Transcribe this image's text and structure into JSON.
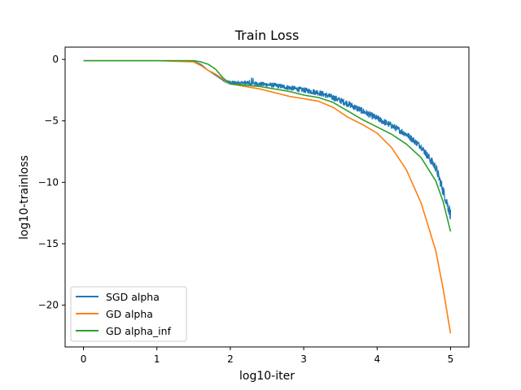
{
  "chart_data": {
    "type": "line",
    "title": "Train Loss",
    "xlabel": "log10-iter",
    "ylabel": "log10-trainloss",
    "xlim": [
      -0.25,
      5.25
    ],
    "ylim": [
      -23.4,
      1.0
    ],
    "xticks": [
      0,
      1,
      2,
      3,
      4,
      5
    ],
    "yticks": [
      0,
      -5,
      -10,
      -15,
      -20
    ],
    "xtick_labels": [
      "0",
      "1",
      "2",
      "3",
      "4",
      "5"
    ],
    "ytick_labels": [
      "0",
      "−5",
      "−10",
      "−15",
      "−20"
    ],
    "grid": false,
    "legend_position": "lower-left",
    "series": [
      {
        "name": "SGD alpha",
        "color": "#1f77b4",
        "noisy": true,
        "x": [
          0,
          0.5,
          1.0,
          1.5,
          1.6,
          1.7,
          1.8,
          1.9,
          2.0,
          2.2,
          2.4,
          2.6,
          2.8,
          3.0,
          3.2,
          3.4,
          3.6,
          3.8,
          4.0,
          4.2,
          4.4,
          4.6,
          4.8,
          5.0
        ],
        "y": [
          -0.1,
          -0.1,
          -0.1,
          -0.15,
          -0.4,
          -0.9,
          -1.3,
          -1.7,
          -1.9,
          -1.9,
          -2.0,
          -2.1,
          -2.3,
          -2.5,
          -2.7,
          -3.1,
          -3.6,
          -4.2,
          -4.8,
          -5.4,
          -6.1,
          -7.1,
          -8.8,
          -12.6
        ]
      },
      {
        "name": "GD alpha",
        "color": "#ff7f0e",
        "noisy": false,
        "x": [
          0,
          0.5,
          1.0,
          1.5,
          1.6,
          1.7,
          1.8,
          1.9,
          2.0,
          2.2,
          2.4,
          2.6,
          2.8,
          3.0,
          3.2,
          3.4,
          3.6,
          3.8,
          4.0,
          4.2,
          4.4,
          4.6,
          4.8,
          4.9,
          5.0
        ],
        "y": [
          -0.1,
          -0.1,
          -0.1,
          -0.2,
          -0.5,
          -0.9,
          -1.2,
          -1.6,
          -2.0,
          -2.2,
          -2.4,
          -2.7,
          -3.0,
          -3.2,
          -3.4,
          -3.9,
          -4.7,
          -5.3,
          -6.0,
          -7.2,
          -9.0,
          -11.7,
          -15.6,
          -18.7,
          -22.3
        ]
      },
      {
        "name": "GD alpha_inf",
        "color": "#2ca02c",
        "noisy": false,
        "x": [
          0,
          0.5,
          1.0,
          1.5,
          1.6,
          1.7,
          1.8,
          1.9,
          2.0,
          2.2,
          2.4,
          2.6,
          2.8,
          3.0,
          3.2,
          3.4,
          3.6,
          3.8,
          4.0,
          4.2,
          4.4,
          4.6,
          4.8,
          4.9,
          5.0
        ],
        "y": [
          -0.1,
          -0.1,
          -0.1,
          -0.1,
          -0.2,
          -0.4,
          -0.8,
          -1.5,
          -2.0,
          -2.1,
          -2.2,
          -2.4,
          -2.6,
          -2.9,
          -3.1,
          -3.5,
          -4.2,
          -4.9,
          -5.5,
          -6.1,
          -6.9,
          -8.0,
          -9.9,
          -11.6,
          -14.0
        ]
      }
    ]
  }
}
